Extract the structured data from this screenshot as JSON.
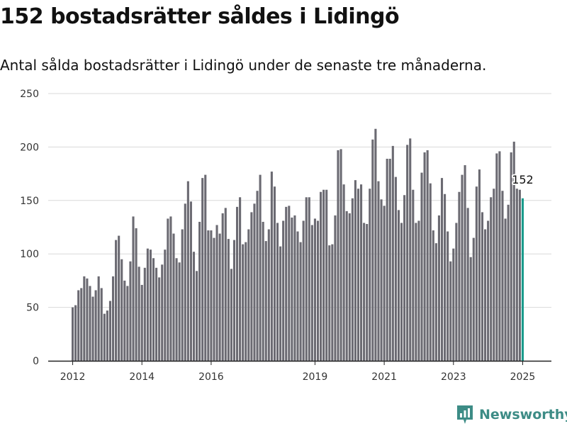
{
  "title": "152 bostadsrätter såldes i Lidingö",
  "subtitle": "Antal sålda bostadsrätter i Lidingö under de senaste tre månaderna.",
  "brand": {
    "name": "Newsworthy",
    "color": "#3d8c86"
  },
  "colors": {
    "bar": "#6b6a72",
    "highlight": "#1a9b8c",
    "grid": "#d9d9d9"
  },
  "chart_data": {
    "type": "bar",
    "title": "152 bostadsrätter såldes i Lidingö",
    "subtitle": "Antal sålda bostadsrätter i Lidingö under de senaste tre månaderna.",
    "xlabel": "",
    "ylabel": "",
    "ylim": [
      0,
      250
    ],
    "yticks": [
      0,
      50,
      100,
      150,
      200,
      250
    ],
    "xticks": [
      "2012",
      "2014",
      "2016",
      "2019",
      "2021",
      "2023",
      "2025"
    ],
    "grid": true,
    "annotation": {
      "label": "152",
      "value": 152
    },
    "series": [
      {
        "values": [
          50,
          52,
          66,
          68,
          79,
          77,
          70,
          60,
          66,
          79,
          68,
          44,
          47,
          56,
          79,
          113,
          117,
          95,
          75,
          70,
          93,
          135,
          124,
          88,
          71,
          87,
          105,
          104,
          96,
          87,
          78,
          90,
          104,
          133,
          135,
          119,
          96,
          92,
          123,
          147,
          168,
          149,
          102,
          84,
          130,
          171,
          174,
          122,
          122,
          115,
          127,
          119,
          138,
          143,
          114,
          86,
          113,
          144,
          153,
          109,
          111,
          123,
          139,
          147,
          159,
          174,
          130,
          112,
          123,
          177,
          163,
          129,
          107,
          131,
          144,
          145,
          134,
          136,
          121,
          111,
          131,
          153,
          153,
          127,
          133,
          131,
          158,
          160,
          160,
          108,
          109,
          136,
          197,
          198,
          165,
          140,
          138,
          152,
          169,
          161,
          165,
          129,
          128,
          161,
          207,
          217,
          168,
          151,
          145,
          189,
          189,
          201,
          172,
          141,
          129,
          155,
          202,
          208,
          160,
          129,
          131,
          176,
          195,
          197,
          166,
          122,
          110,
          136,
          171,
          156,
          121,
          93,
          105,
          129,
          158,
          174,
          183,
          143,
          97,
          115,
          163,
          179,
          139,
          123,
          131,
          153,
          161,
          194,
          196,
          159,
          133,
          146,
          195,
          205,
          161,
          160,
          152
        ]
      }
    ]
  }
}
